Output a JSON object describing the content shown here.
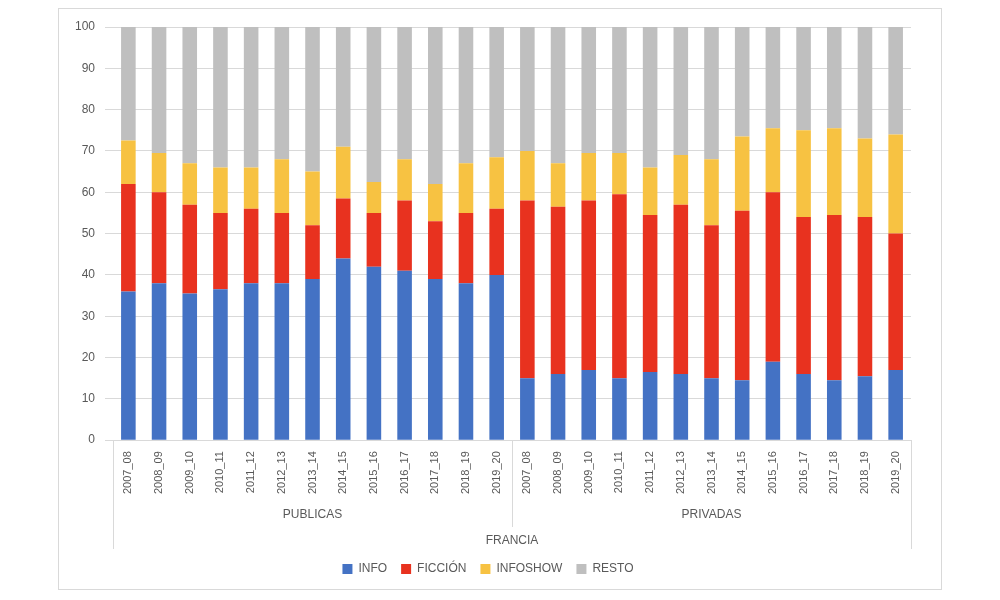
{
  "chart_data": {
    "type": "bar",
    "stacked": true,
    "grid": true,
    "legend": "bottom",
    "group_title": "FRANCIA",
    "groups": [
      {
        "name": "PUBLICAS",
        "categories": [
          "2007_08",
          "2008_09",
          "2009_10",
          "2010_11",
          "2011_12",
          "2012_13",
          "2013_14",
          "2014_15",
          "2015_16",
          "2016_17",
          "2017_18",
          "2018_19",
          "2019_20"
        ]
      },
      {
        "name": "PRIVADAS",
        "categories": [
          "2007_08",
          "2008_09",
          "2009_10",
          "2010_11",
          "2011_12",
          "2012_13",
          "2013_14",
          "2014_15",
          "2015_16",
          "2016_17",
          "2017_18",
          "2018_19",
          "2019_20"
        ]
      }
    ],
    "ylim": [
      0,
      100
    ],
    "yticks": [
      0,
      10,
      20,
      30,
      40,
      50,
      60,
      70,
      80,
      90,
      100
    ],
    "series": [
      {
        "name": "INFO",
        "color": "#4472c4",
        "values": [
          36,
          38,
          35.5,
          36.5,
          38,
          38,
          39,
          44,
          42,
          41,
          39,
          38,
          40,
          15,
          16,
          17,
          15,
          16.5,
          16,
          15,
          14.5,
          19,
          16,
          14.5,
          15.5,
          17
        ]
      },
      {
        "name": "FICCIÓN",
        "color": "#e8321f",
        "values": [
          26,
          22,
          21.5,
          18.5,
          18,
          17,
          13,
          14.5,
          13,
          17,
          14,
          17,
          16,
          43,
          40.5,
          41,
          44.5,
          38,
          41,
          37,
          41,
          41,
          38,
          40,
          38.5,
          33
        ]
      },
      {
        "name": "INFOSHOW",
        "color": "#f7c242",
        "values": [
          10.5,
          9.5,
          10,
          11,
          10,
          13,
          13,
          12.5,
          7.5,
          10,
          9,
          12,
          12.5,
          12,
          10.5,
          11.5,
          10,
          11.5,
          12,
          16,
          18,
          15.5,
          21,
          21,
          19,
          24
        ]
      },
      {
        "name": "RESTO",
        "color": "#bfbfbf",
        "values": [
          27.5,
          30.5,
          33,
          34,
          34,
          32,
          35,
          29,
          37.5,
          32,
          38,
          33,
          31.5,
          30,
          33,
          30.5,
          30.5,
          34,
          31,
          32,
          26.5,
          24.5,
          25,
          24.5,
          27,
          26
        ]
      }
    ]
  }
}
